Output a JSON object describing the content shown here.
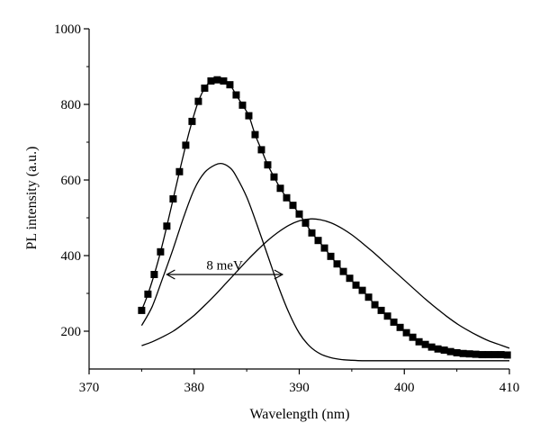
{
  "chart_data": {
    "type": "line",
    "xlabel": "Wavelength (nm)",
    "ylabel": "PL intensity (a.u.)",
    "xlim": [
      370,
      410
    ],
    "ylim": [
      100,
      1000
    ],
    "xticks": [
      370,
      380,
      390,
      400,
      410
    ],
    "yticks": [
      200,
      400,
      600,
      800,
      1000
    ],
    "xtick_labels": [
      "370",
      "380",
      "390",
      "400",
      "410"
    ],
    "ytick_labels": [
      "200",
      "400",
      "600",
      "800",
      "1000"
    ],
    "grid": false,
    "legend": "none",
    "series": [
      {
        "marker": "square",
        "line": true,
        "x": [
          375.0,
          375.6,
          376.2,
          376.8,
          377.4,
          378.0,
          378.6,
          379.2,
          379.8,
          380.4,
          381.0,
          381.6,
          382.2,
          382.8,
          383.4,
          384.0,
          384.6,
          385.2,
          385.8,
          386.4,
          387.0,
          387.6,
          388.2,
          388.8,
          389.4,
          390.0,
          390.6,
          391.2,
          391.8,
          392.4,
          393.0,
          393.6,
          394.2,
          394.8,
          395.4,
          396.0,
          396.6,
          397.2,
          397.8,
          398.4,
          399.0,
          399.6,
          400.2,
          400.8,
          401.4,
          402.0,
          402.6,
          403.2,
          403.8,
          404.4,
          405.0,
          405.6,
          406.2,
          406.8,
          407.4,
          408.0,
          408.6,
          409.2,
          409.8
        ],
        "y": [
          255,
          298,
          350,
          410,
          478,
          550,
          622,
          692,
          755,
          808,
          843,
          862,
          865,
          862,
          852,
          825,
          798,
          770,
          720,
          680,
          640,
          608,
          578,
          553,
          533,
          510,
          486,
          460,
          440,
          420,
          398,
          378,
          358,
          340,
          322,
          308,
          290,
          270,
          255,
          240,
          224,
          210,
          196,
          184,
          172,
          165,
          158,
          153,
          150,
          146,
          143,
          141,
          140,
          139,
          138,
          138,
          138,
          138,
          137
        ]
      },
      {
        "marker": "none",
        "line": true,
        "x": [
          375.0,
          376.0,
          377.0,
          378.0,
          379.0,
          380.0,
          381.0,
          382.0,
          382.7,
          383.5,
          384.0,
          385.0,
          386.0,
          387.0,
          388.0,
          389.0,
          390.0,
          391.0,
          392.0,
          393.0,
          394.0,
          395.0,
          396.0,
          397.0,
          398.0,
          400.0,
          405.0,
          410.0
        ],
        "y": [
          215,
          265,
          340,
          418,
          502,
          575,
          620,
          640,
          643,
          630,
          610,
          555,
          480,
          400,
          320,
          250,
          195,
          160,
          140,
          130,
          125,
          123,
          122,
          122,
          122,
          122,
          122,
          122
        ]
      },
      {
        "marker": "none",
        "line": true,
        "x": [
          375.0,
          376.0,
          377.0,
          378.0,
          379.0,
          380.0,
          381.0,
          382.0,
          383.0,
          384.0,
          385.0,
          386.0,
          387.0,
          388.0,
          389.0,
          390.0,
          391.0,
          392.0,
          393.0,
          394.0,
          395.0,
          396.0,
          397.0,
          398.0,
          399.0,
          400.0,
          401.0,
          402.0,
          403.0,
          404.0,
          405.0,
          406.0,
          407.0,
          408.0,
          409.0,
          410.0
        ],
        "y": [
          162,
          172,
          185,
          200,
          220,
          242,
          268,
          296,
          326,
          356,
          386,
          414,
          440,
          462,
          480,
          492,
          497,
          495,
          487,
          473,
          455,
          433,
          410,
          385,
          360,
          335,
          310,
          285,
          262,
          240,
          220,
          203,
          188,
          175,
          165,
          155
        ]
      }
    ],
    "annotations": [
      {
        "text": "8 meV",
        "x": 382.9,
        "y": 375,
        "arrow_from_x": 377.4,
        "arrow_to_x": 388.4,
        "arrow_y": 350
      }
    ]
  }
}
